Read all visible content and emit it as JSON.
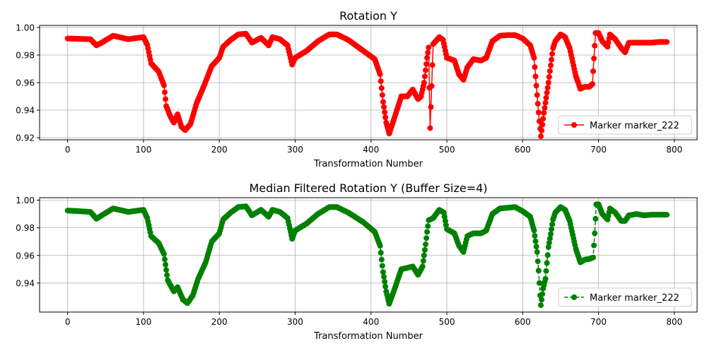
{
  "chart_data": [
    {
      "type": "line",
      "title": "Rotation Y",
      "xlabel": "Transformation Number",
      "ylabel": "",
      "xlim": [
        -37,
        830
      ],
      "ylim": [
        0.9185,
        1.0015
      ],
      "xticks": [
        0,
        100,
        200,
        300,
        400,
        500,
        600,
        700,
        800
      ],
      "yticks": [
        0.92,
        0.94,
        0.96,
        0.98,
        1.0
      ],
      "ytick_labels": [
        "0.92",
        "0.94",
        "0.96",
        "0.98",
        "1.00"
      ],
      "grid": true,
      "legend_position": "lower-right",
      "series": [
        {
          "name": "Marker marker_222",
          "color": "#ff0000",
          "line_style": "solid",
          "marker": "circle",
          "keypoints": [
            [
              0,
              0.992
            ],
            [
              30,
              0.9915
            ],
            [
              38,
              0.987
            ],
            [
              45,
              0.989
            ],
            [
              60,
              0.994
            ],
            [
              80,
              0.9915
            ],
            [
              100,
              0.993
            ],
            [
              105,
              0.9875
            ],
            [
              110,
              0.974
            ],
            [
              120,
              0.968
            ],
            [
              127,
              0.958
            ],
            [
              130,
              0.943
            ],
            [
              135,
              0.936
            ],
            [
              140,
              0.931
            ],
            [
              145,
              0.937
            ],
            [
              150,
              0.928
            ],
            [
              155,
              0.9255
            ],
            [
              162,
              0.93
            ],
            [
              170,
              0.945
            ],
            [
              180,
              0.958
            ],
            [
              190,
              0.972
            ],
            [
              200,
              0.978
            ],
            [
              205,
              0.986
            ],
            [
              215,
              0.991
            ],
            [
              225,
              0.995
            ],
            [
              235,
              0.9955
            ],
            [
              243,
              0.989
            ],
            [
              255,
              0.9925
            ],
            [
              265,
              0.987
            ],
            [
              270,
              0.993
            ],
            [
              280,
              0.9915
            ],
            [
              290,
              0.987
            ],
            [
              296,
              0.973
            ],
            [
              300,
              0.978
            ],
            [
              315,
              0.983
            ],
            [
              330,
              0.99
            ],
            [
              345,
              0.995
            ],
            [
              355,
              0.995
            ],
            [
              370,
              0.991
            ],
            [
              390,
              0.983
            ],
            [
              405,
              0.977
            ],
            [
              412,
              0.966
            ],
            [
              416,
              0.946
            ],
            [
              420,
              0.931
            ],
            [
              424,
              0.923
            ],
            [
              430,
              0.933
            ],
            [
              440,
              0.95
            ],
            [
              448,
              0.95
            ],
            [
              455,
              0.955
            ],
            [
              462,
              0.948
            ],
            [
              466,
              0.95
            ],
            [
              470,
              0.96
            ],
            [
              474,
              0.978
            ],
            [
              476,
              0.9855
            ],
            [
              478,
              0.927
            ],
            [
              482,
              0.988
            ],
            [
              490,
              0.993
            ],
            [
              495,
              0.991
            ],
            [
              500,
              0.978
            ],
            [
              510,
              0.976
            ],
            [
              516,
              0.966
            ],
            [
              522,
              0.962
            ],
            [
              527,
              0.971
            ],
            [
              535,
              0.977
            ],
            [
              545,
              0.976
            ],
            [
              552,
              0.978
            ],
            [
              560,
              0.99
            ],
            [
              570,
              0.994
            ],
            [
              580,
              0.9945
            ],
            [
              590,
              0.9945
            ],
            [
              600,
              0.992
            ],
            [
              610,
              0.987
            ],
            [
              615,
              0.978
            ],
            [
              619,
              0.951
            ],
            [
              622,
              0.932
            ],
            [
              624,
              0.921
            ],
            [
              628,
              0.938
            ],
            [
              634,
              0.96
            ],
            [
              640,
              0.985
            ],
            [
              643,
              0.99
            ],
            [
              650,
              0.995
            ],
            [
              656,
              0.993
            ],
            [
              662,
              0.985
            ],
            [
              670,
              0.965
            ],
            [
              676,
              0.9555
            ],
            [
              682,
              0.957
            ],
            [
              688,
              0.957
            ],
            [
              692,
              0.959
            ],
            [
              696,
              0.996
            ],
            [
              700,
              0.996
            ],
            [
              705,
              0.99
            ],
            [
              712,
              0.986
            ],
            [
              715,
              0.995
            ],
            [
              722,
              0.9915
            ],
            [
              730,
              0.985
            ],
            [
              735,
              0.982
            ],
            [
              740,
              0.989
            ],
            [
              750,
              0.989
            ],
            [
              760,
              0.989
            ],
            [
              770,
              0.989
            ],
            [
              780,
              0.9895
            ],
            [
              790,
              0.9895
            ]
          ]
        }
      ]
    },
    {
      "type": "line",
      "title": "Median Filtered Rotation Y (Buffer Size=4)",
      "xlabel": "Transformation Number",
      "ylabel": "",
      "xlim": [
        -37,
        830
      ],
      "ylim": [
        0.919,
        1.0018
      ],
      "xticks": [
        0,
        100,
        200,
        300,
        400,
        500,
        600,
        700,
        800
      ],
      "yticks": [
        0.94,
        0.96,
        0.98,
        1.0
      ],
      "ytick_labels": [
        "0.94",
        "0.96",
        "0.98",
        "1.00"
      ],
      "grid": true,
      "legend_position": "lower-right",
      "series": [
        {
          "name": "Marker marker_222",
          "color": "#008000",
          "line_style": "dashed",
          "marker": "circle",
          "keypoints": [
            [
              0,
              0.9925
            ],
            [
              30,
              0.9915
            ],
            [
              38,
              0.9865
            ],
            [
              45,
              0.989
            ],
            [
              60,
              0.994
            ],
            [
              80,
              0.9915
            ],
            [
              100,
              0.993
            ],
            [
              105,
              0.987
            ],
            [
              110,
              0.974
            ],
            [
              120,
              0.969
            ],
            [
              127,
              0.961
            ],
            [
              130,
              0.9495
            ],
            [
              132,
              0.942
            ],
            [
              140,
              0.934
            ],
            [
              145,
              0.937
            ],
            [
              152,
              0.928
            ],
            [
              158,
              0.9255
            ],
            [
              165,
              0.931
            ],
            [
              172,
              0.943
            ],
            [
              182,
              0.955
            ],
            [
              190,
              0.97
            ],
            [
              200,
              0.976
            ],
            [
              205,
              0.986
            ],
            [
              215,
              0.991
            ],
            [
              225,
              0.995
            ],
            [
              235,
              0.9955
            ],
            [
              243,
              0.989
            ],
            [
              255,
              0.993
            ],
            [
              265,
              0.988
            ],
            [
              270,
              0.993
            ],
            [
              280,
              0.9915
            ],
            [
              290,
              0.987
            ],
            [
              296,
              0.972
            ],
            [
              300,
              0.978
            ],
            [
              315,
              0.983
            ],
            [
              330,
              0.99
            ],
            [
              345,
              0.995
            ],
            [
              355,
              0.995
            ],
            [
              370,
              0.991
            ],
            [
              390,
              0.984
            ],
            [
              405,
              0.977
            ],
            [
              412,
              0.967
            ],
            [
              414,
              0.957
            ],
            [
              416,
              0.948
            ],
            [
              420,
              0.934
            ],
            [
              424,
              0.925
            ],
            [
              430,
              0.934
            ],
            [
              440,
              0.95
            ],
            [
              448,
              0.951
            ],
            [
              455,
              0.952
            ],
            [
              462,
              0.946
            ],
            [
              468,
              0.952
            ],
            [
              472,
              0.968
            ],
            [
              474,
              0.977
            ],
            [
              476,
              0.9855
            ],
            [
              482,
              0.987
            ],
            [
              490,
              0.993
            ],
            [
              496,
              0.991
            ],
            [
              500,
              0.979
            ],
            [
              510,
              0.976
            ],
            [
              516,
              0.967
            ],
            [
              522,
              0.9625
            ],
            [
              527,
              0.974
            ],
            [
              535,
              0.976
            ],
            [
              545,
              0.976
            ],
            [
              552,
              0.978
            ],
            [
              560,
              0.99
            ],
            [
              570,
              0.994
            ],
            [
              580,
              0.9945
            ],
            [
              590,
              0.995
            ],
            [
              600,
              0.992
            ],
            [
              610,
              0.988
            ],
            [
              615,
              0.978
            ],
            [
              619,
              0.9625
            ],
            [
              621,
              0.949
            ],
            [
              623,
              0.931
            ],
            [
              624,
              0.924
            ],
            [
              627,
              0.936
            ],
            [
              630,
              0.943
            ],
            [
              634,
              0.966
            ],
            [
              637,
              0.9755
            ],
            [
              640,
              0.986
            ],
            [
              643,
              0.991
            ],
            [
              650,
              0.995
            ],
            [
              656,
              0.993
            ],
            [
              662,
              0.985
            ],
            [
              670,
              0.965
            ],
            [
              676,
              0.955
            ],
            [
              682,
              0.957
            ],
            [
              688,
              0.9575
            ],
            [
              693,
              0.9585
            ],
            [
              695,
              0.976
            ],
            [
              697,
              0.997
            ],
            [
              700,
              0.997
            ],
            [
              705,
              0.99
            ],
            [
              712,
              0.986
            ],
            [
              715,
              0.994
            ],
            [
              722,
              0.991
            ],
            [
              730,
              0.985
            ],
            [
              735,
              0.985
            ],
            [
              740,
              0.989
            ],
            [
              750,
              0.99
            ],
            [
              760,
              0.989
            ],
            [
              770,
              0.9895
            ],
            [
              780,
              0.9895
            ],
            [
              790,
              0.9895
            ]
          ]
        }
      ]
    }
  ]
}
